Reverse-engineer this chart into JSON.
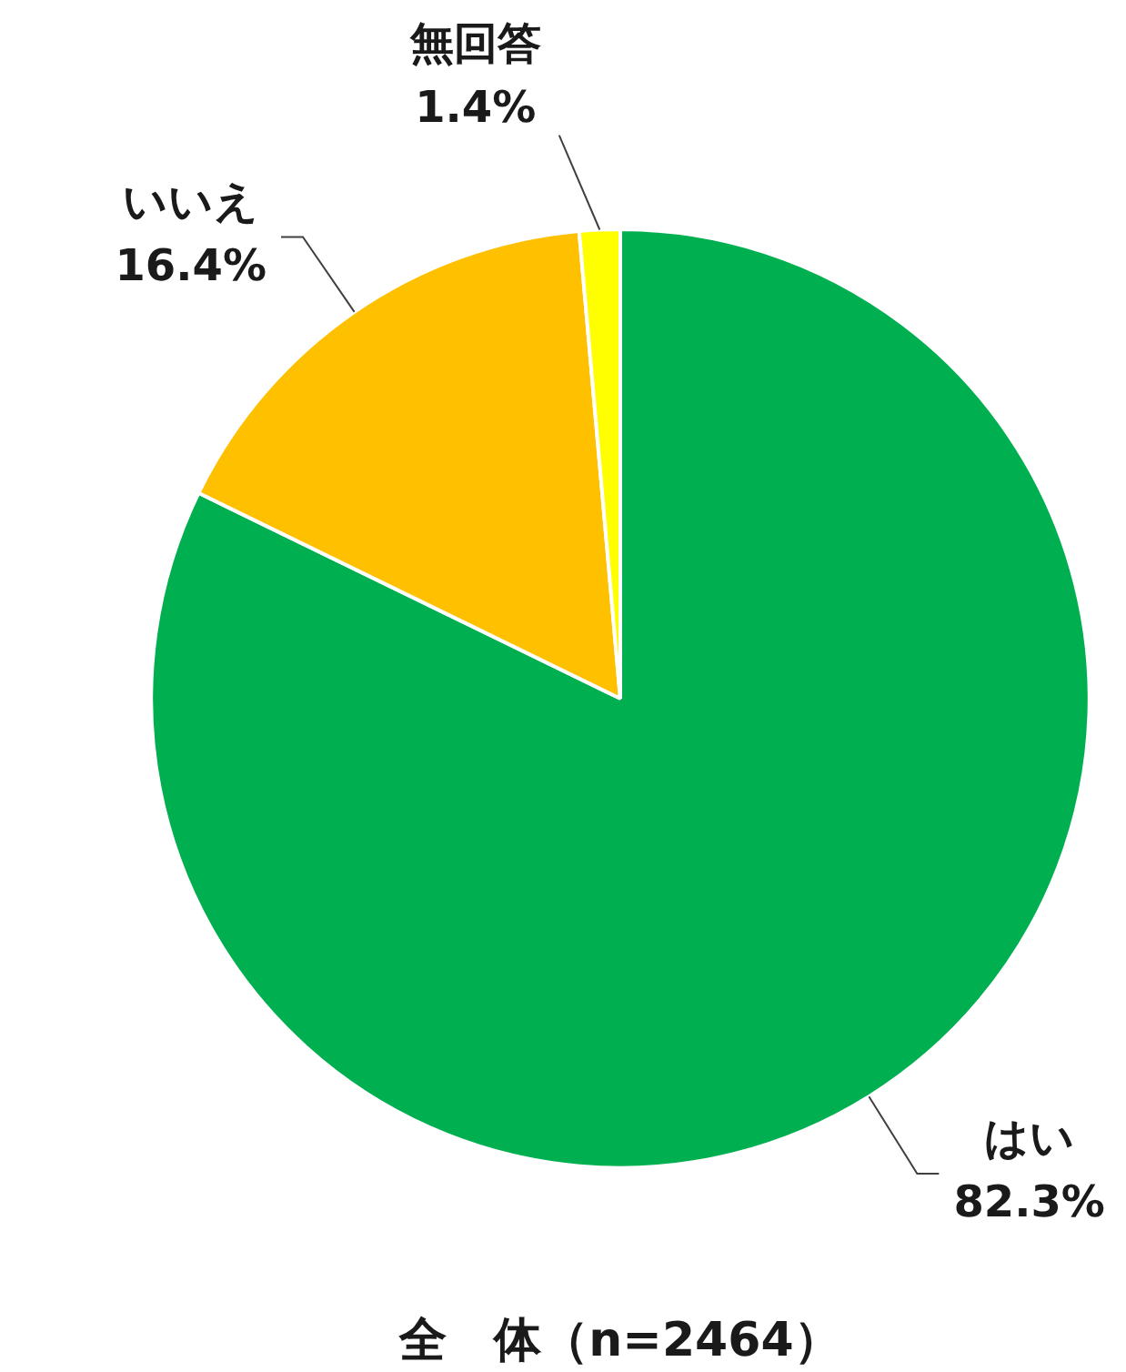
{
  "chart_data": {
    "type": "pie",
    "title": "全　体（n=2464）",
    "categories": [
      "はい",
      "いいえ",
      "無回答"
    ],
    "values": [
      82.3,
      16.4,
      1.4
    ],
    "colors": [
      "#00b050",
      "#ffc000",
      "#ffff00"
    ],
    "value_labels": [
      "82.3%",
      "16.4%",
      "1.4%"
    ]
  }
}
